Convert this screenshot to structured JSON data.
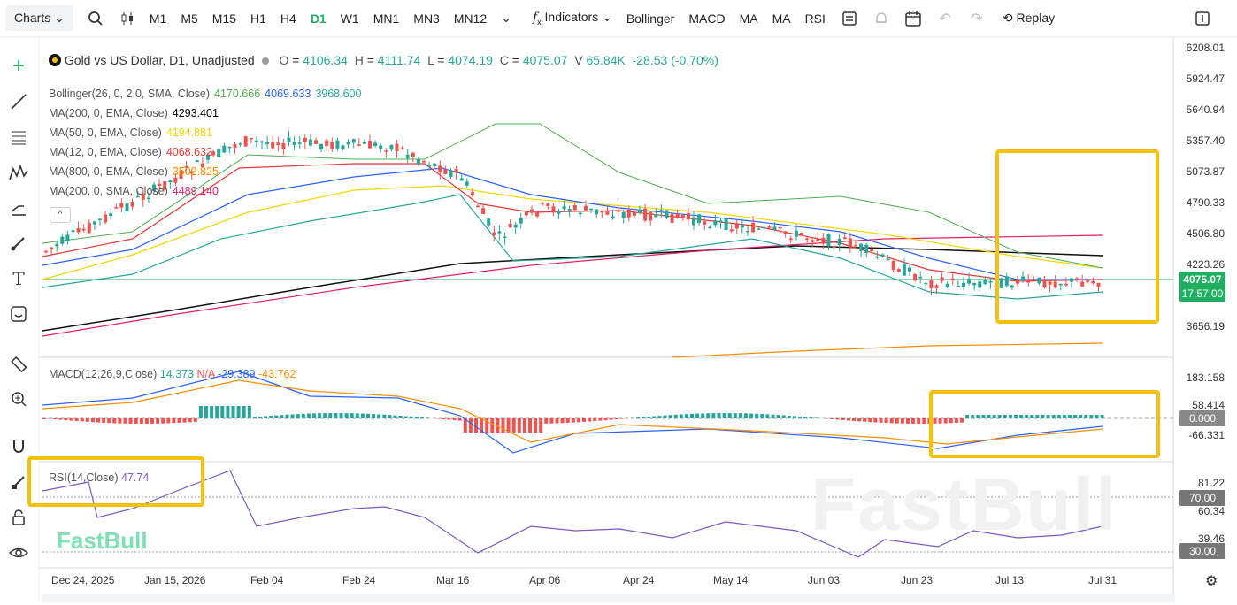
{
  "toolbar": {
    "charts_label": "Charts",
    "timeframes": [
      "M1",
      "M5",
      "M15",
      "H1",
      "H4",
      "D1",
      "W1",
      "MN1",
      "MN3",
      "MN12"
    ],
    "active_timeframe": "D1",
    "indicators_label": "Indicators",
    "quick_indicators": [
      "Bollinger",
      "MACD",
      "MA",
      "MA",
      "RSI"
    ],
    "replay_label": "Replay"
  },
  "symbol": {
    "title": "Gold vs US Dollar, D1, Unadjusted",
    "open_label": "O",
    "open": "4106.34",
    "high_label": "H",
    "high": "4111.74",
    "low_label": "L",
    "low": "4074.19",
    "close_label": "C",
    "close": "4075.07",
    "volume_label": "V",
    "volume": "65.84K",
    "change": "-28.53 (-0.70%)"
  },
  "indicators": [
    {
      "label": "Bollinger(26, 0, 2.0, SMA, Close)",
      "values": [
        "4170.666",
        "4069.633",
        "3968.600"
      ],
      "colors": [
        "#4caf50",
        "#2962ff",
        "#26a69a"
      ]
    },
    {
      "label": "MA(200, 0, EMA, Close)",
      "values": [
        "4293.401"
      ],
      "colors": [
        "#000000"
      ]
    },
    {
      "label": "MA(50, 0, EMA, Close)",
      "values": [
        "4194.881"
      ],
      "colors": [
        "#f2d600"
      ]
    },
    {
      "label": "MA(12, 0, EMA, Close)",
      "values": [
        "4068.632"
      ],
      "colors": [
        "#e53935"
      ]
    },
    {
      "label": "MA(800, 0, EMA, Close)",
      "values": [
        "3502.825"
      ],
      "colors": [
        "#ff8c00"
      ]
    },
    {
      "label": "MA(200, 0, SMA, Close)",
      "values": [
        "4489.140"
      ],
      "colors": [
        "#e91e63"
      ]
    }
  ],
  "price_axis": [
    "6208.01",
    "5924.47",
    "5640.94",
    "5357.40",
    "5073.87",
    "4790.33",
    "4506.80",
    "4223.26",
    "3656.19"
  ],
  "current_price": "4075.07",
  "current_time": "17:57:00",
  "macd": {
    "label": "MACD(12,26,9,Close)",
    "value1": "14.373",
    "value2": "N/A",
    "value3": "-29.389",
    "value4": "-43.762",
    "axis": [
      "183.158",
      "58.414",
      "-66.331"
    ],
    "zero": "0.000"
  },
  "rsi": {
    "label": "RSI(14,Close)",
    "value": "47.74",
    "axis": [
      "81.22",
      "60.34",
      "39.46"
    ],
    "levels": [
      "70.00",
      "30.00"
    ]
  },
  "dates": [
    "Dec 24, 2025",
    "Jan 15, 2026",
    "Feb 04",
    "Feb 24",
    "Mar 16",
    "Apr 06",
    "Apr 24",
    "May 14",
    "Jun 03",
    "Jun 23",
    "Jul 13",
    "Jul 31"
  ],
  "watermark": "FastBull",
  "colors": {
    "up": "#26a69a",
    "down": "#ef5350",
    "accent": "#1fae62",
    "highlight": "#f4c20d"
  }
}
